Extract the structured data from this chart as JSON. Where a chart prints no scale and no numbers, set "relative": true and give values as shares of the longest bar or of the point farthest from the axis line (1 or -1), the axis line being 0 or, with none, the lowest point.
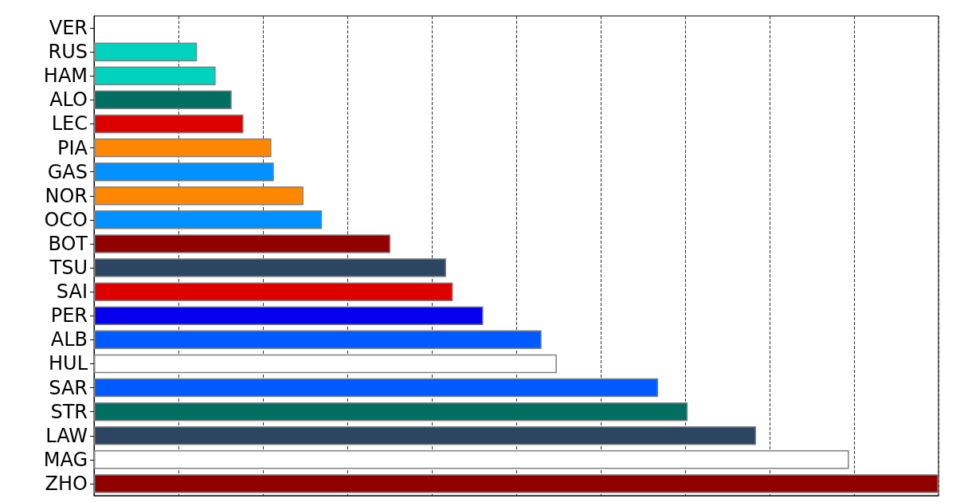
{
  "chart_data": {
    "type": "bar",
    "orientation": "horizontal",
    "relative": true,
    "grid": "x",
    "categories": [
      "VER",
      "RUS",
      "HAM",
      "ALO",
      "LEC",
      "PIA",
      "GAS",
      "NOR",
      "OCO",
      "BOT",
      "TSU",
      "SAI",
      "PER",
      "ALB",
      "HUL",
      "SAR",
      "STR",
      "LAW",
      "MAG",
      "ZHO"
    ],
    "values": [
      0,
      0.122,
      0.144,
      0.163,
      0.177,
      0.21,
      0.213,
      0.248,
      0.27,
      0.351,
      0.417,
      0.425,
      0.461,
      0.53,
      0.548,
      0.668,
      0.703,
      0.784,
      0.894,
      1
    ],
    "colors": [
      "#0600ef",
      "#00d2be",
      "#00d2be",
      "#006f62",
      "#dc0000",
      "#ff8700",
      "#0090ff",
      "#ff8700",
      "#0090ff",
      "#900000",
      "#2b4562",
      "#dc0000",
      "#0600ef",
      "#005aff",
      "#ffffff",
      "#005aff",
      "#006f62",
      "#2b4562",
      "#ffffff",
      "#900000"
    ]
  }
}
